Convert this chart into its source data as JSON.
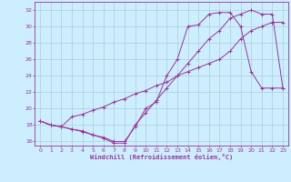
{
  "xlabel": "Windchill (Refroidissement éolien,°C)",
  "bg_color": "#cceeff",
  "line_color": "#993399",
  "grid_color": "#aaccdd",
  "xlim": [
    -0.5,
    23.5
  ],
  "ylim": [
    15.5,
    33.0
  ],
  "xticks": [
    0,
    1,
    2,
    3,
    4,
    5,
    6,
    7,
    8,
    9,
    10,
    11,
    12,
    13,
    14,
    15,
    16,
    17,
    18,
    19,
    20,
    21,
    22,
    23
  ],
  "yticks": [
    16,
    18,
    20,
    22,
    24,
    26,
    28,
    30,
    32
  ],
  "line1_x": [
    0,
    1,
    2,
    3,
    4,
    5,
    6,
    7,
    8,
    9,
    10,
    11,
    12,
    13,
    14,
    15,
    16,
    17,
    18,
    19,
    20,
    21,
    22,
    23
  ],
  "line1_y": [
    18.5,
    18.0,
    17.8,
    17.5,
    17.2,
    16.8,
    16.5,
    16.0,
    16.0,
    17.8,
    20.0,
    20.8,
    24.0,
    26.0,
    30.0,
    30.2,
    31.5,
    31.7,
    31.7,
    30.0,
    24.5,
    22.5,
    22.5,
    22.5
  ],
  "line2_x": [
    0,
    1,
    2,
    3,
    4,
    5,
    6,
    7,
    8,
    9,
    10,
    11,
    12,
    13,
    14,
    15,
    16,
    17,
    18,
    19,
    20,
    21,
    22,
    23
  ],
  "line2_y": [
    18.5,
    18.0,
    17.8,
    19.0,
    19.3,
    19.8,
    20.2,
    20.8,
    21.2,
    21.8,
    22.2,
    22.8,
    23.2,
    24.0,
    24.5,
    25.0,
    25.5,
    26.0,
    27.0,
    28.5,
    29.5,
    30.0,
    30.5,
    30.5
  ],
  "line3_x": [
    0,
    1,
    2,
    3,
    4,
    5,
    6,
    7,
    8,
    9,
    10,
    11,
    12,
    13,
    14,
    15,
    16,
    17,
    18,
    19,
    20,
    21,
    22,
    23
  ],
  "line3_y": [
    18.5,
    18.0,
    17.8,
    17.5,
    17.3,
    16.8,
    16.4,
    15.8,
    15.8,
    18.0,
    19.5,
    21.0,
    22.5,
    24.0,
    25.5,
    27.0,
    28.5,
    29.5,
    31.0,
    31.5,
    32.0,
    31.5,
    31.5,
    22.5
  ]
}
